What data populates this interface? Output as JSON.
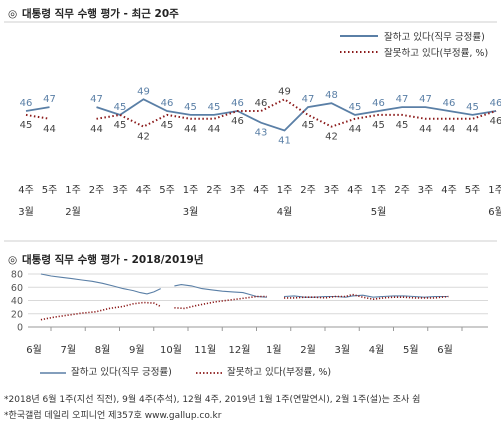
{
  "titles": {
    "mark": "◎",
    "top": "대통령 직무 수행 평가 - 최근 20주",
    "bottom": "대통령 직무 수행 평가 - 2018/2019년"
  },
  "colors": {
    "approve": "#5a7fa6",
    "disapprove": "#8b1a1a",
    "shade": "#e4e4e4",
    "grid": "#d9d9d9"
  },
  "footnotes": [
    "*2018년 6월 1주(지선 직전), 9월 4주(추석), 12월 4주, 2019년 1월 1주(연말연시), 2월 1주(설)는 조사 쉼",
    "*한국갤럽 데일리 오피니언 제357호 www.gallup.co.kr"
  ],
  "chart_data": [
    {
      "type": "line",
      "title": "대통령 직무 수행 평가 - 최근 20주",
      "categories": [
        "4주",
        "5주",
        "1주",
        "2주",
        "3주",
        "4주",
        "5주",
        "1주",
        "2주",
        "3주",
        "4주",
        "1주",
        "2주",
        "3주",
        "4주",
        "1주",
        "2주",
        "3주",
        "4주",
        "5주",
        "1주"
      ],
      "month_labels": [
        {
          "index": 0,
          "text": "3월"
        },
        {
          "index": 2,
          "text": "2월"
        },
        {
          "index": 7,
          "text": "3월"
        },
        {
          "index": 11,
          "text": "4월"
        },
        {
          "index": 15,
          "text": "5월"
        },
        {
          "index": 20,
          "text": "6월"
        }
      ],
      "series": [
        {
          "name": "잘하고 있다(직무 긍정률)",
          "style": "solid",
          "values": [
            46,
            47,
            null,
            47,
            45,
            49,
            46,
            45,
            45,
            46,
            43,
            41,
            47,
            48,
            45,
            46,
            47,
            47,
            46,
            45,
            46
          ]
        },
        {
          "name": "잘못하고 있다(부정률, %)",
          "style": "dotted",
          "values": [
            45,
            44,
            null,
            44,
            45,
            42,
            45,
            44,
            44,
            46,
            46,
            49,
            45,
            42,
            44,
            45,
            45,
            44,
            44,
            44,
            46
          ]
        }
      ],
      "legend_position": "top-right",
      "ylim": [
        35,
        55
      ]
    },
    {
      "type": "line",
      "title": "대통령 직무 수행 평가 - 2018/2019년",
      "x_labels": [
        "6월",
        "7월",
        "8월",
        "9월",
        "10월",
        "11월",
        "12월",
        "1월",
        "2월",
        "3월",
        "4월",
        "5월",
        "6월"
      ],
      "yticks": [
        0,
        20,
        40,
        60,
        80
      ],
      "ylim": [
        0,
        90
      ],
      "grid": true,
      "highlight_range": {
        "from": "1월",
        "to": "6월"
      },
      "series": [
        {
          "name": "잘하고 있다(직무 긍정률)",
          "style": "solid",
          "segments": [
            [
              [
                0.2,
                80
              ],
              [
                0.5,
                77
              ],
              [
                0.8,
                75
              ],
              [
                1.1,
                73
              ],
              [
                1.4,
                71
              ],
              [
                1.7,
                69
              ],
              [
                2.0,
                66
              ],
              [
                2.3,
                62
              ],
              [
                2.6,
                58
              ],
              [
                2.9,
                55
              ],
              [
                3.1,
                52
              ],
              [
                3.3,
                50
              ],
              [
                3.5,
                53
              ],
              [
                3.7,
                58
              ]
            ],
            [
              [
                4.1,
                62
              ],
              [
                4.3,
                64
              ],
              [
                4.6,
                62
              ],
              [
                4.9,
                58
              ],
              [
                5.2,
                56
              ],
              [
                5.5,
                54
              ],
              [
                5.8,
                53
              ],
              [
                6.1,
                52
              ],
              [
                6.3,
                49
              ],
              [
                6.5,
                46
              ],
              [
                6.8,
                45
              ]
            ],
            [
              [
                7.3,
                46
              ],
              [
                7.6,
                47
              ],
              [
                7.9,
                45
              ],
              [
                8.2,
                45
              ],
              [
                8.5,
                46
              ],
              [
                8.8,
                46
              ],
              [
                9.1,
                45
              ],
              [
                9.3,
                47
              ],
              [
                9.6,
                48
              ],
              [
                9.9,
                45
              ],
              [
                10.2,
                46
              ],
              [
                10.5,
                47
              ],
              [
                10.8,
                47
              ],
              [
                11.1,
                46
              ],
              [
                11.4,
                45
              ],
              [
                11.7,
                46
              ],
              [
                12.1,
                46
              ]
            ]
          ]
        },
        {
          "name": "잘못하고 있다(부정률, %)",
          "style": "dotted",
          "segments": [
            [
              [
                0.2,
                11
              ],
              [
                0.6,
                15
              ],
              [
                1.0,
                18
              ],
              [
                1.4,
                21
              ],
              [
                1.8,
                23
              ],
              [
                2.2,
                28
              ],
              [
                2.6,
                31
              ],
              [
                2.9,
                35
              ],
              [
                3.2,
                37
              ],
              [
                3.5,
                36
              ],
              [
                3.7,
                31
              ]
            ],
            [
              [
                4.1,
                29
              ],
              [
                4.4,
                28
              ],
              [
                4.7,
                32
              ],
              [
                5.0,
                35
              ],
              [
                5.3,
                38
              ],
              [
                5.6,
                40
              ],
              [
                5.9,
                42
              ],
              [
                6.2,
                44
              ],
              [
                6.5,
                46
              ],
              [
                6.8,
                46
              ]
            ],
            [
              [
                7.3,
                44
              ],
              [
                7.6,
                44
              ],
              [
                7.9,
                45
              ],
              [
                8.2,
                45
              ],
              [
                8.5,
                44
              ],
              [
                8.8,
                46
              ],
              [
                9.1,
                46
              ],
              [
                9.3,
                49
              ],
              [
                9.6,
                45
              ],
              [
                9.9,
                42
              ],
              [
                10.2,
                44
              ],
              [
                10.5,
                45
              ],
              [
                10.8,
                45
              ],
              [
                11.1,
                44
              ],
              [
                11.4,
                44
              ],
              [
                11.7,
                44
              ],
              [
                12.1,
                46
              ]
            ]
          ]
        }
      ]
    }
  ]
}
